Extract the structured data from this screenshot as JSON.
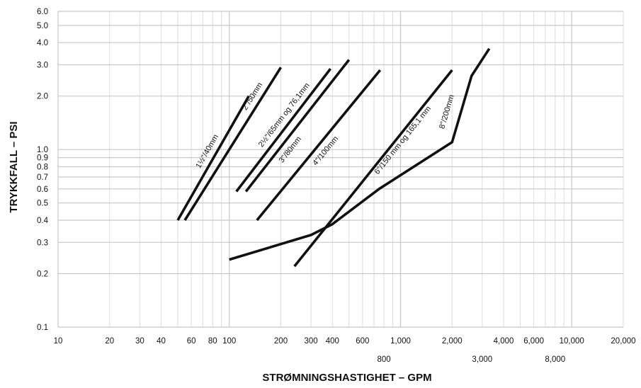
{
  "chart_data": {
    "type": "line",
    "title": "",
    "xlabel": "STRØMNINGSHASTIGHET – GPM",
    "ylabel": "TRYKKFALL – PSI",
    "x_scale": "log",
    "y_scale": "log",
    "xlim": [
      10,
      20000
    ],
    "ylim": [
      0.1,
      6.0
    ],
    "grid": true,
    "legend": "none",
    "line_color": "#111111",
    "x_ticks": [
      {
        "value": 10,
        "label": "10",
        "row": 1
      },
      {
        "value": 20,
        "label": "20",
        "row": 1
      },
      {
        "value": 30,
        "label": "30",
        "row": 1
      },
      {
        "value": 40,
        "label": "40",
        "row": 1
      },
      {
        "value": 60,
        "label": "60",
        "row": 1
      },
      {
        "value": 80,
        "label": "80",
        "row": 1
      },
      {
        "value": 100,
        "label": "100",
        "row": 1
      },
      {
        "value": 200,
        "label": "200",
        "row": 1
      },
      {
        "value": 300,
        "label": "300",
        "row": 1
      },
      {
        "value": 400,
        "label": "400",
        "row": 1
      },
      {
        "value": 600,
        "label": "600",
        "row": 1
      },
      {
        "value": 800,
        "label": "800",
        "row": 2
      },
      {
        "value": 1000,
        "label": "1,000",
        "row": 1
      },
      {
        "value": 2000,
        "label": "2,000",
        "row": 1
      },
      {
        "value": 3000,
        "label": "3,000",
        "row": 2
      },
      {
        "value": 4000,
        "label": "4,000",
        "row": 1
      },
      {
        "value": 6000,
        "label": "6,000",
        "row": 1
      },
      {
        "value": 8000,
        "label": "8,000",
        "row": 2
      },
      {
        "value": 10000,
        "label": "10,000",
        "row": 1
      },
      {
        "value": 20000,
        "label": "20,000",
        "row": 1
      }
    ],
    "x_grid": [
      10,
      20,
      30,
      40,
      50,
      60,
      70,
      80,
      90,
      100,
      200,
      300,
      400,
      500,
      600,
      700,
      800,
      900,
      1000,
      2000,
      3000,
      4000,
      5000,
      6000,
      7000,
      8000,
      9000,
      10000,
      20000
    ],
    "y_ticks": [
      {
        "value": 0.1,
        "label": "0.1"
      },
      {
        "value": 0.2,
        "label": "0.2"
      },
      {
        "value": 0.3,
        "label": "0.3"
      },
      {
        "value": 0.4,
        "label": "0.4"
      },
      {
        "value": 0.5,
        "label": "0.5"
      },
      {
        "value": 0.6,
        "label": "0.6"
      },
      {
        "value": 0.7,
        "label": "0.7"
      },
      {
        "value": 0.8,
        "label": "0.8"
      },
      {
        "value": 0.9,
        "label": "0.9"
      },
      {
        "value": 1.0,
        "label": "1.0"
      },
      {
        "value": 2.0,
        "label": "2.0"
      },
      {
        "value": 3.0,
        "label": "3.0"
      },
      {
        "value": 4.0,
        "label": "4.0"
      },
      {
        "value": 5.0,
        "label": "5.0"
      },
      {
        "value": 6.0,
        "label": "6.0"
      }
    ],
    "series": [
      {
        "name": "1½\"/40mm",
        "x": [
          50,
          130
        ],
        "y": [
          0.4,
          2.0
        ]
      },
      {
        "name": "2\"/50mm",
        "x": [
          55,
          200
        ],
        "y": [
          0.4,
          2.9
        ]
      },
      {
        "name": "2½\"/65mm og 76,1mm",
        "x": [
          110,
          390
        ],
        "y": [
          0.58,
          2.85
        ]
      },
      {
        "name": "3\"/80mm",
        "x": [
          125,
          500
        ],
        "y": [
          0.58,
          3.2
        ]
      },
      {
        "name": "4\"/100mm",
        "x": [
          145,
          760
        ],
        "y": [
          0.4,
          2.8
        ]
      },
      {
        "name": "6\"/150 mm og 165,1 mm",
        "x": [
          240,
          2000
        ],
        "y": [
          0.22,
          2.8
        ]
      },
      {
        "name": "8\"/200mm",
        "x": [
          100,
          300,
          400,
          750,
          2000,
          2600,
          3300
        ],
        "y": [
          0.24,
          0.33,
          0.38,
          0.6,
          1.1,
          2.6,
          3.7
        ]
      }
    ]
  }
}
